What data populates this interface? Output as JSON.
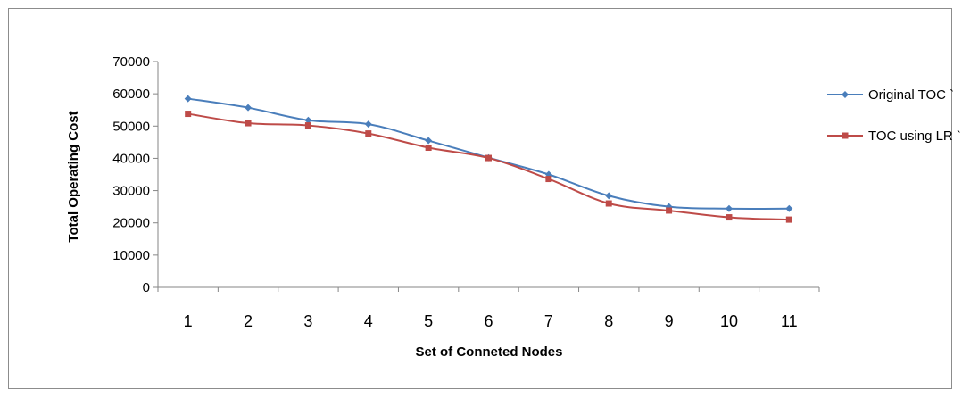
{
  "chart_data": {
    "type": "line",
    "title": "",
    "xlabel": "Set of Conneted Nodes",
    "ylabel": "Total Operating Cost",
    "categories": [
      "1",
      "2",
      "3",
      "4",
      "5",
      "6",
      "7",
      "8",
      "9",
      "10",
      "11"
    ],
    "ylim": [
      0,
      70000
    ],
    "yticks": [
      "0",
      "10000",
      "20000",
      "30000",
      "40000",
      "50000",
      "60000",
      "70000"
    ],
    "grid": false,
    "legend_position": "right",
    "series": [
      {
        "name": "Original TOC `",
        "color": "#4a7ebb",
        "marker": "diamond",
        "values": [
          58500,
          55700,
          51800,
          50600,
          45500,
          40200,
          35000,
          28400,
          25000,
          24400,
          24400
        ]
      },
      {
        "name": "TOC using LR `",
        "color": "#be4b48",
        "marker": "square",
        "values": [
          53800,
          50900,
          50200,
          47700,
          43300,
          40100,
          33600,
          26000,
          23800,
          21700,
          21000
        ]
      }
    ]
  }
}
